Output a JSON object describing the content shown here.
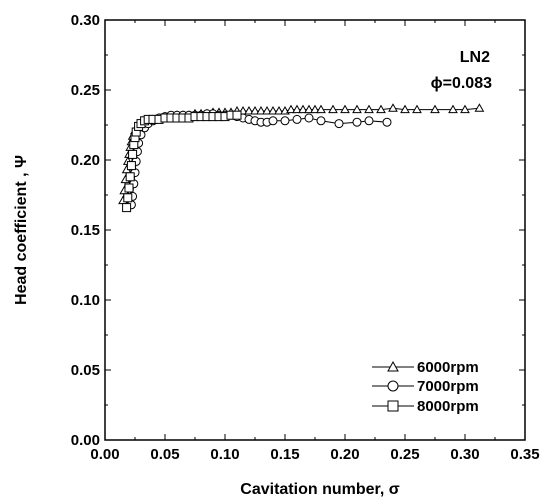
{
  "chart_data": {
    "type": "scatter",
    "xlabel": "Cavitation number, σ",
    "ylabel": "Head coefficient , Ψ",
    "xlim": [
      0,
      0.35
    ],
    "ylim": [
      0,
      0.3
    ],
    "x_ticks": [
      "0.00",
      "0.05",
      "0.10",
      "0.15",
      "0.20",
      "0.25",
      "0.30",
      "0.35"
    ],
    "y_ticks": [
      "0.00",
      "0.05",
      "0.10",
      "0.15",
      "0.20",
      "0.25",
      "0.30"
    ],
    "x_tick_values": [
      0,
      0.05,
      0.1,
      0.15,
      0.2,
      0.25,
      0.3,
      0.35
    ],
    "y_tick_values": [
      0,
      0.05,
      0.1,
      0.15,
      0.2,
      0.25,
      0.3
    ],
    "annotations": [
      "LN2",
      "ϕ=0.083"
    ],
    "legend_position": "bottom-right",
    "series": [
      {
        "name": "6000rpm",
        "marker": "triangle",
        "x": [
          0.015,
          0.016,
          0.017,
          0.018,
          0.019,
          0.02,
          0.021,
          0.022,
          0.023,
          0.025,
          0.027,
          0.03,
          0.035,
          0.04,
          0.045,
          0.05,
          0.055,
          0.06,
          0.065,
          0.07,
          0.075,
          0.08,
          0.085,
          0.09,
          0.095,
          0.1,
          0.105,
          0.11,
          0.115,
          0.12,
          0.125,
          0.13,
          0.135,
          0.14,
          0.145,
          0.15,
          0.155,
          0.16,
          0.165,
          0.17,
          0.175,
          0.18,
          0.19,
          0.2,
          0.21,
          0.22,
          0.23,
          0.24,
          0.25,
          0.26,
          0.275,
          0.29,
          0.3,
          0.312
        ],
        "y": [
          0.171,
          0.178,
          0.186,
          0.193,
          0.199,
          0.204,
          0.209,
          0.213,
          0.217,
          0.221,
          0.224,
          0.226,
          0.228,
          0.229,
          0.23,
          0.231,
          0.231,
          0.232,
          0.232,
          0.232,
          0.233,
          0.233,
          0.233,
          0.234,
          0.234,
          0.234,
          0.234,
          0.235,
          0.235,
          0.235,
          0.235,
          0.235,
          0.235,
          0.235,
          0.235,
          0.235,
          0.236,
          0.236,
          0.236,
          0.236,
          0.236,
          0.236,
          0.236,
          0.236,
          0.236,
          0.236,
          0.236,
          0.237,
          0.236,
          0.236,
          0.236,
          0.236,
          0.236,
          0.237
        ]
      },
      {
        "name": "7000rpm",
        "marker": "circle",
        "x": [
          0.022,
          0.023,
          0.024,
          0.025,
          0.026,
          0.027,
          0.028,
          0.03,
          0.033,
          0.036,
          0.04,
          0.045,
          0.05,
          0.055,
          0.06,
          0.065,
          0.07,
          0.075,
          0.08,
          0.085,
          0.09,
          0.095,
          0.1,
          0.105,
          0.11,
          0.115,
          0.12,
          0.125,
          0.13,
          0.135,
          0.14,
          0.15,
          0.16,
          0.17,
          0.18,
          0.195,
          0.21,
          0.22,
          0.235
        ],
        "y": [
          0.168,
          0.174,
          0.183,
          0.191,
          0.199,
          0.206,
          0.212,
          0.218,
          0.223,
          0.226,
          0.228,
          0.23,
          0.231,
          0.232,
          0.232,
          0.232,
          0.232,
          0.232,
          0.232,
          0.233,
          0.233,
          0.232,
          0.232,
          0.232,
          0.231,
          0.23,
          0.229,
          0.228,
          0.227,
          0.227,
          0.228,
          0.228,
          0.229,
          0.23,
          0.228,
          0.226,
          0.227,
          0.228,
          0.227
        ]
      },
      {
        "name": "8000rpm",
        "marker": "square",
        "x": [
          0.018,
          0.019,
          0.02,
          0.021,
          0.022,
          0.023,
          0.024,
          0.025,
          0.026,
          0.028,
          0.03,
          0.033,
          0.036,
          0.04,
          0.045,
          0.05,
          0.055,
          0.06,
          0.065,
          0.07,
          0.075,
          0.08,
          0.085,
          0.09,
          0.095,
          0.1,
          0.105,
          0.11
        ],
        "y": [
          0.166,
          0.173,
          0.18,
          0.188,
          0.196,
          0.204,
          0.211,
          0.216,
          0.22,
          0.224,
          0.226,
          0.228,
          0.229,
          0.229,
          0.229,
          0.23,
          0.23,
          0.23,
          0.23,
          0.23,
          0.231,
          0.231,
          0.231,
          0.231,
          0.231,
          0.231,
          0.232,
          0.232
        ]
      }
    ]
  }
}
